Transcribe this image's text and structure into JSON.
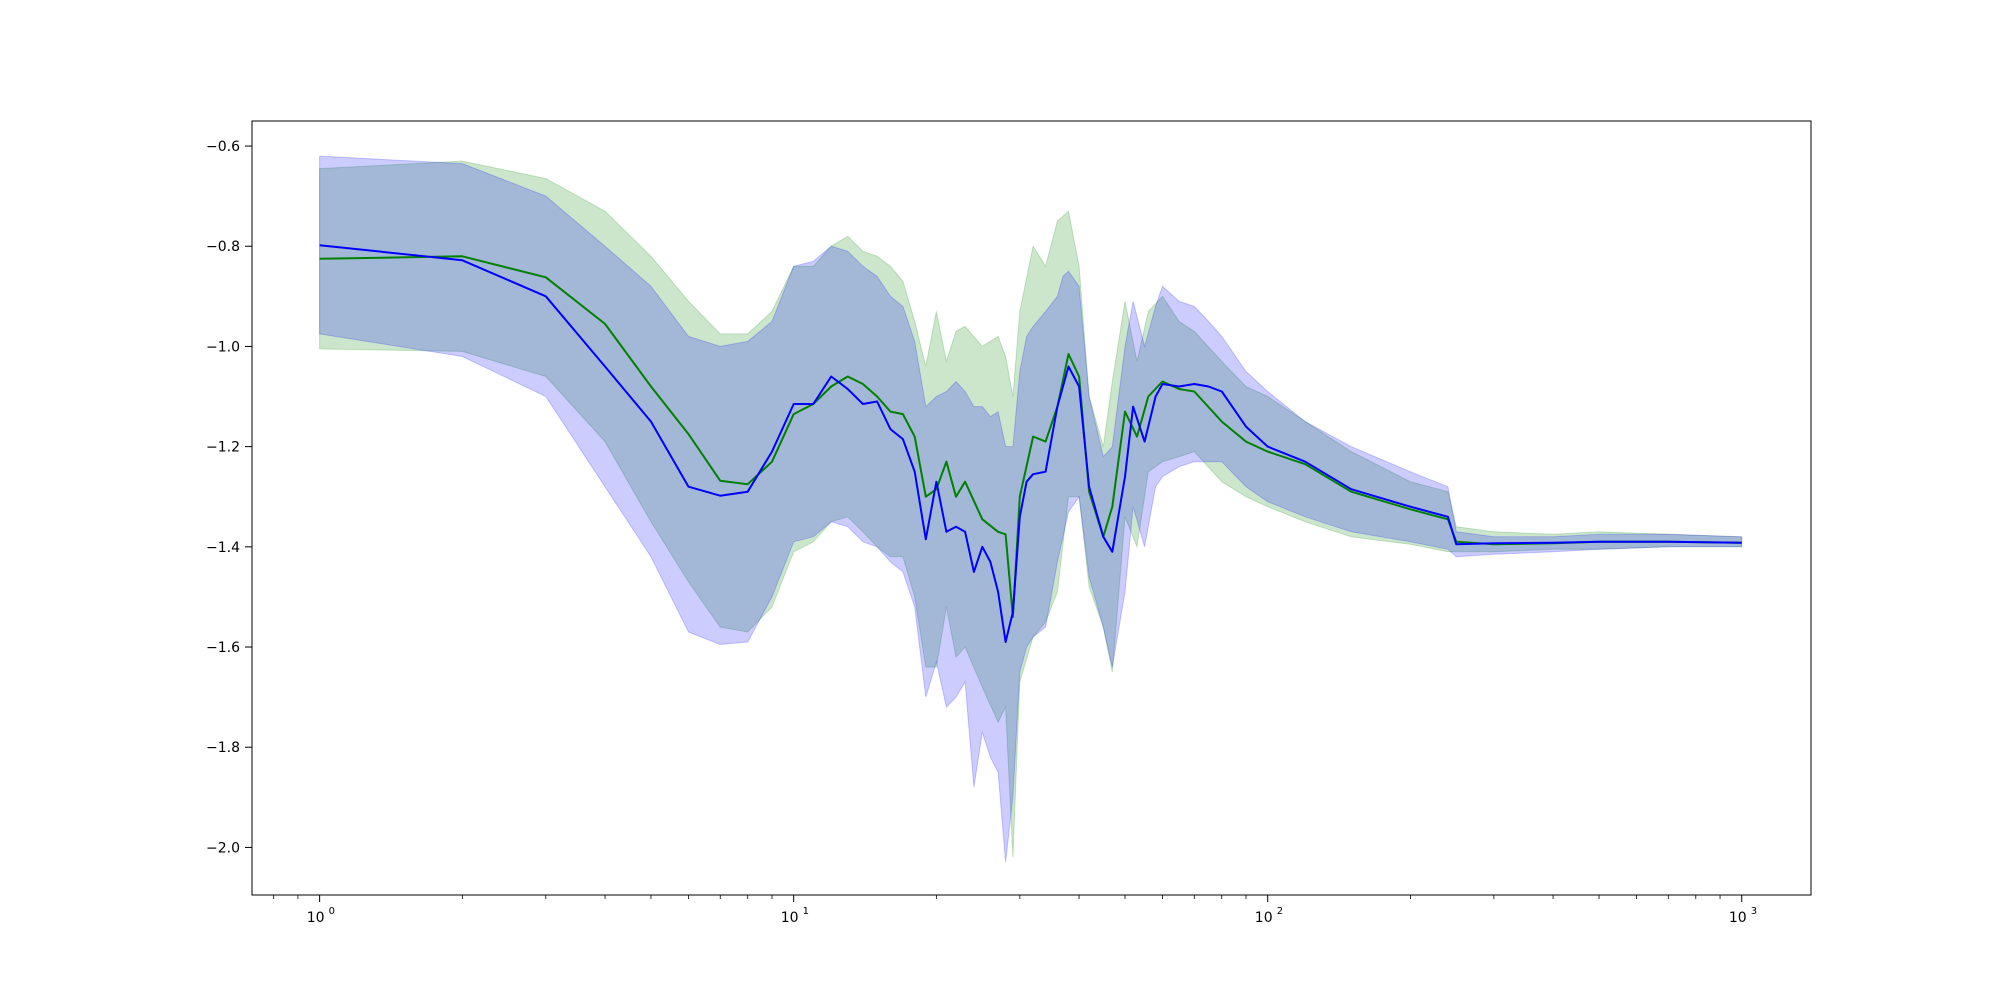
{
  "chart_data": {
    "type": "line",
    "xscale": "log",
    "xlim": [
      0.72,
      1400
    ],
    "ylim": [
      -2.095,
      -0.55
    ],
    "xticks": [
      1,
      10,
      100,
      1000
    ],
    "xtick_labels": [
      "10",
      "10",
      "10",
      "10"
    ],
    "xtick_exponents": [
      "0",
      "1",
      "2",
      "3"
    ],
    "yticks": [
      -0.6,
      -0.8,
      -1.0,
      -1.2,
      -1.4,
      -1.6,
      -1.8,
      -2.0
    ],
    "ytick_labels": [
      "−0.6",
      "−0.8",
      "−1.0",
      "−1.2",
      "−1.4",
      "−1.6",
      "−1.8",
      "−2.0"
    ],
    "grid": false,
    "series": [
      {
        "color": "#008000",
        "band_color": "#008000",
        "band_opacity": 0.2,
        "x": [
          1,
          2,
          3,
          4,
          5,
          6,
          7,
          8,
          9,
          10,
          11,
          12,
          13,
          14,
          15,
          16,
          17,
          18,
          19,
          20,
          21,
          22,
          23,
          25,
          27,
          28,
          29,
          30,
          32,
          34,
          36,
          38,
          40,
          42,
          45,
          47,
          50,
          53,
          56,
          60,
          65,
          70,
          80,
          90,
          100,
          120,
          150,
          200,
          240,
          250,
          300,
          400,
          500,
          700,
          1000
        ],
        "y": [
          -0.825,
          -0.82,
          -0.862,
          -0.955,
          -1.08,
          -1.175,
          -1.268,
          -1.275,
          -1.23,
          -1.135,
          -1.115,
          -1.08,
          -1.06,
          -1.075,
          -1.1,
          -1.13,
          -1.135,
          -1.18,
          -1.3,
          -1.285,
          -1.23,
          -1.3,
          -1.27,
          -1.345,
          -1.37,
          -1.375,
          -1.54,
          -1.3,
          -1.18,
          -1.19,
          -1.12,
          -1.015,
          -1.06,
          -1.29,
          -1.38,
          -1.32,
          -1.13,
          -1.18,
          -1.1,
          -1.07,
          -1.085,
          -1.09,
          -1.15,
          -1.19,
          -1.21,
          -1.235,
          -1.29,
          -1.325,
          -1.345,
          -1.39,
          -1.395,
          -1.393,
          -1.39,
          -1.39,
          -1.392
        ],
        "upper": [
          -0.645,
          -0.63,
          -0.665,
          -0.73,
          -0.82,
          -0.91,
          -0.975,
          -0.975,
          -0.93,
          -0.84,
          -0.84,
          -0.8,
          -0.78,
          -0.81,
          -0.82,
          -0.84,
          -0.87,
          -0.95,
          -1.04,
          -0.93,
          -1.03,
          -0.97,
          -0.96,
          -1.0,
          -0.98,
          -1.02,
          -1.1,
          -0.93,
          -0.8,
          -0.84,
          -0.75,
          -0.73,
          -0.84,
          -1.1,
          -1.2,
          -1.07,
          -0.91,
          -1.03,
          -0.93,
          -0.9,
          -0.95,
          -0.97,
          -1.03,
          -1.08,
          -1.1,
          -1.15,
          -1.21,
          -1.27,
          -1.29,
          -1.36,
          -1.37,
          -1.375,
          -1.37,
          -1.375,
          -1.38
        ],
        "lower": [
          -1.005,
          -1.01,
          -1.06,
          -1.19,
          -1.35,
          -1.47,
          -1.56,
          -1.57,
          -1.52,
          -1.41,
          -1.39,
          -1.35,
          -1.34,
          -1.37,
          -1.4,
          -1.42,
          -1.42,
          -1.5,
          -1.64,
          -1.64,
          -1.52,
          -1.62,
          -1.6,
          -1.68,
          -1.75,
          -1.72,
          -2.02,
          -1.67,
          -1.58,
          -1.55,
          -1.49,
          -1.3,
          -1.3,
          -1.48,
          -1.56,
          -1.65,
          -1.34,
          -1.4,
          -1.25,
          -1.23,
          -1.22,
          -1.21,
          -1.27,
          -1.3,
          -1.32,
          -1.35,
          -1.38,
          -1.395,
          -1.41,
          -1.41,
          -1.41,
          -1.405,
          -1.405,
          -1.4,
          -1.4
        ]
      },
      {
        "color": "#0000ff",
        "band_color": "#0000ff",
        "band_opacity": 0.2,
        "x": [
          1,
          2,
          3,
          4,
          5,
          6,
          7,
          8,
          9,
          10,
          11,
          12,
          13,
          14,
          15,
          16,
          17,
          18,
          19,
          20,
          21,
          22,
          23,
          24,
          25,
          26,
          27,
          28,
          29,
          30,
          31,
          32,
          34,
          36,
          37,
          38,
          40,
          42,
          45,
          47,
          50,
          52,
          55,
          58,
          60,
          65,
          70,
          75,
          80,
          90,
          100,
          120,
          150,
          200,
          240,
          250,
          300,
          400,
          500,
          700,
          1000
        ],
        "y": [
          -0.798,
          -0.828,
          -0.9,
          -1.04,
          -1.15,
          -1.28,
          -1.298,
          -1.29,
          -1.21,
          -1.115,
          -1.115,
          -1.06,
          -1.085,
          -1.115,
          -1.11,
          -1.165,
          -1.185,
          -1.25,
          -1.385,
          -1.27,
          -1.37,
          -1.36,
          -1.37,
          -1.45,
          -1.4,
          -1.43,
          -1.49,
          -1.59,
          -1.53,
          -1.34,
          -1.27,
          -1.255,
          -1.25,
          -1.12,
          -1.08,
          -1.04,
          -1.08,
          -1.28,
          -1.38,
          -1.41,
          -1.26,
          -1.12,
          -1.19,
          -1.1,
          -1.075,
          -1.08,
          -1.075,
          -1.08,
          -1.09,
          -1.16,
          -1.2,
          -1.23,
          -1.285,
          -1.32,
          -1.34,
          -1.395,
          -1.393,
          -1.392,
          -1.39,
          -1.39,
          -1.392
        ],
        "upper": [
          -0.62,
          -0.635,
          -0.7,
          -0.8,
          -0.88,
          -0.98,
          -1.0,
          -0.99,
          -0.95,
          -0.84,
          -0.83,
          -0.8,
          -0.81,
          -0.84,
          -0.86,
          -0.9,
          -0.92,
          -0.99,
          -1.12,
          -1.1,
          -1.09,
          -1.07,
          -1.09,
          -1.12,
          -1.12,
          -1.14,
          -1.13,
          -1.2,
          -1.2,
          -1.05,
          -0.98,
          -0.96,
          -0.93,
          -0.9,
          -0.86,
          -0.85,
          -0.88,
          -1.1,
          -1.22,
          -1.2,
          -1.0,
          -0.91,
          -1.0,
          -0.92,
          -0.88,
          -0.91,
          -0.92,
          -0.95,
          -0.98,
          -1.05,
          -1.09,
          -1.15,
          -1.2,
          -1.25,
          -1.28,
          -1.37,
          -1.38,
          -1.38,
          -1.375,
          -1.375,
          -1.38
        ],
        "lower": [
          -0.975,
          -1.02,
          -1.1,
          -1.28,
          -1.42,
          -1.57,
          -1.595,
          -1.59,
          -1.5,
          -1.39,
          -1.38,
          -1.35,
          -1.36,
          -1.39,
          -1.4,
          -1.43,
          -1.45,
          -1.52,
          -1.7,
          -1.63,
          -1.72,
          -1.7,
          -1.67,
          -1.88,
          -1.77,
          -1.82,
          -1.85,
          -2.03,
          -1.9,
          -1.65,
          -1.6,
          -1.58,
          -1.56,
          -1.43,
          -1.38,
          -1.33,
          -1.3,
          -1.46,
          -1.56,
          -1.64,
          -1.49,
          -1.32,
          -1.4,
          -1.28,
          -1.26,
          -1.24,
          -1.23,
          -1.23,
          -1.23,
          -1.28,
          -1.31,
          -1.34,
          -1.37,
          -1.39,
          -1.405,
          -1.42,
          -1.415,
          -1.41,
          -1.405,
          -1.4,
          -1.4
        ]
      }
    ]
  }
}
